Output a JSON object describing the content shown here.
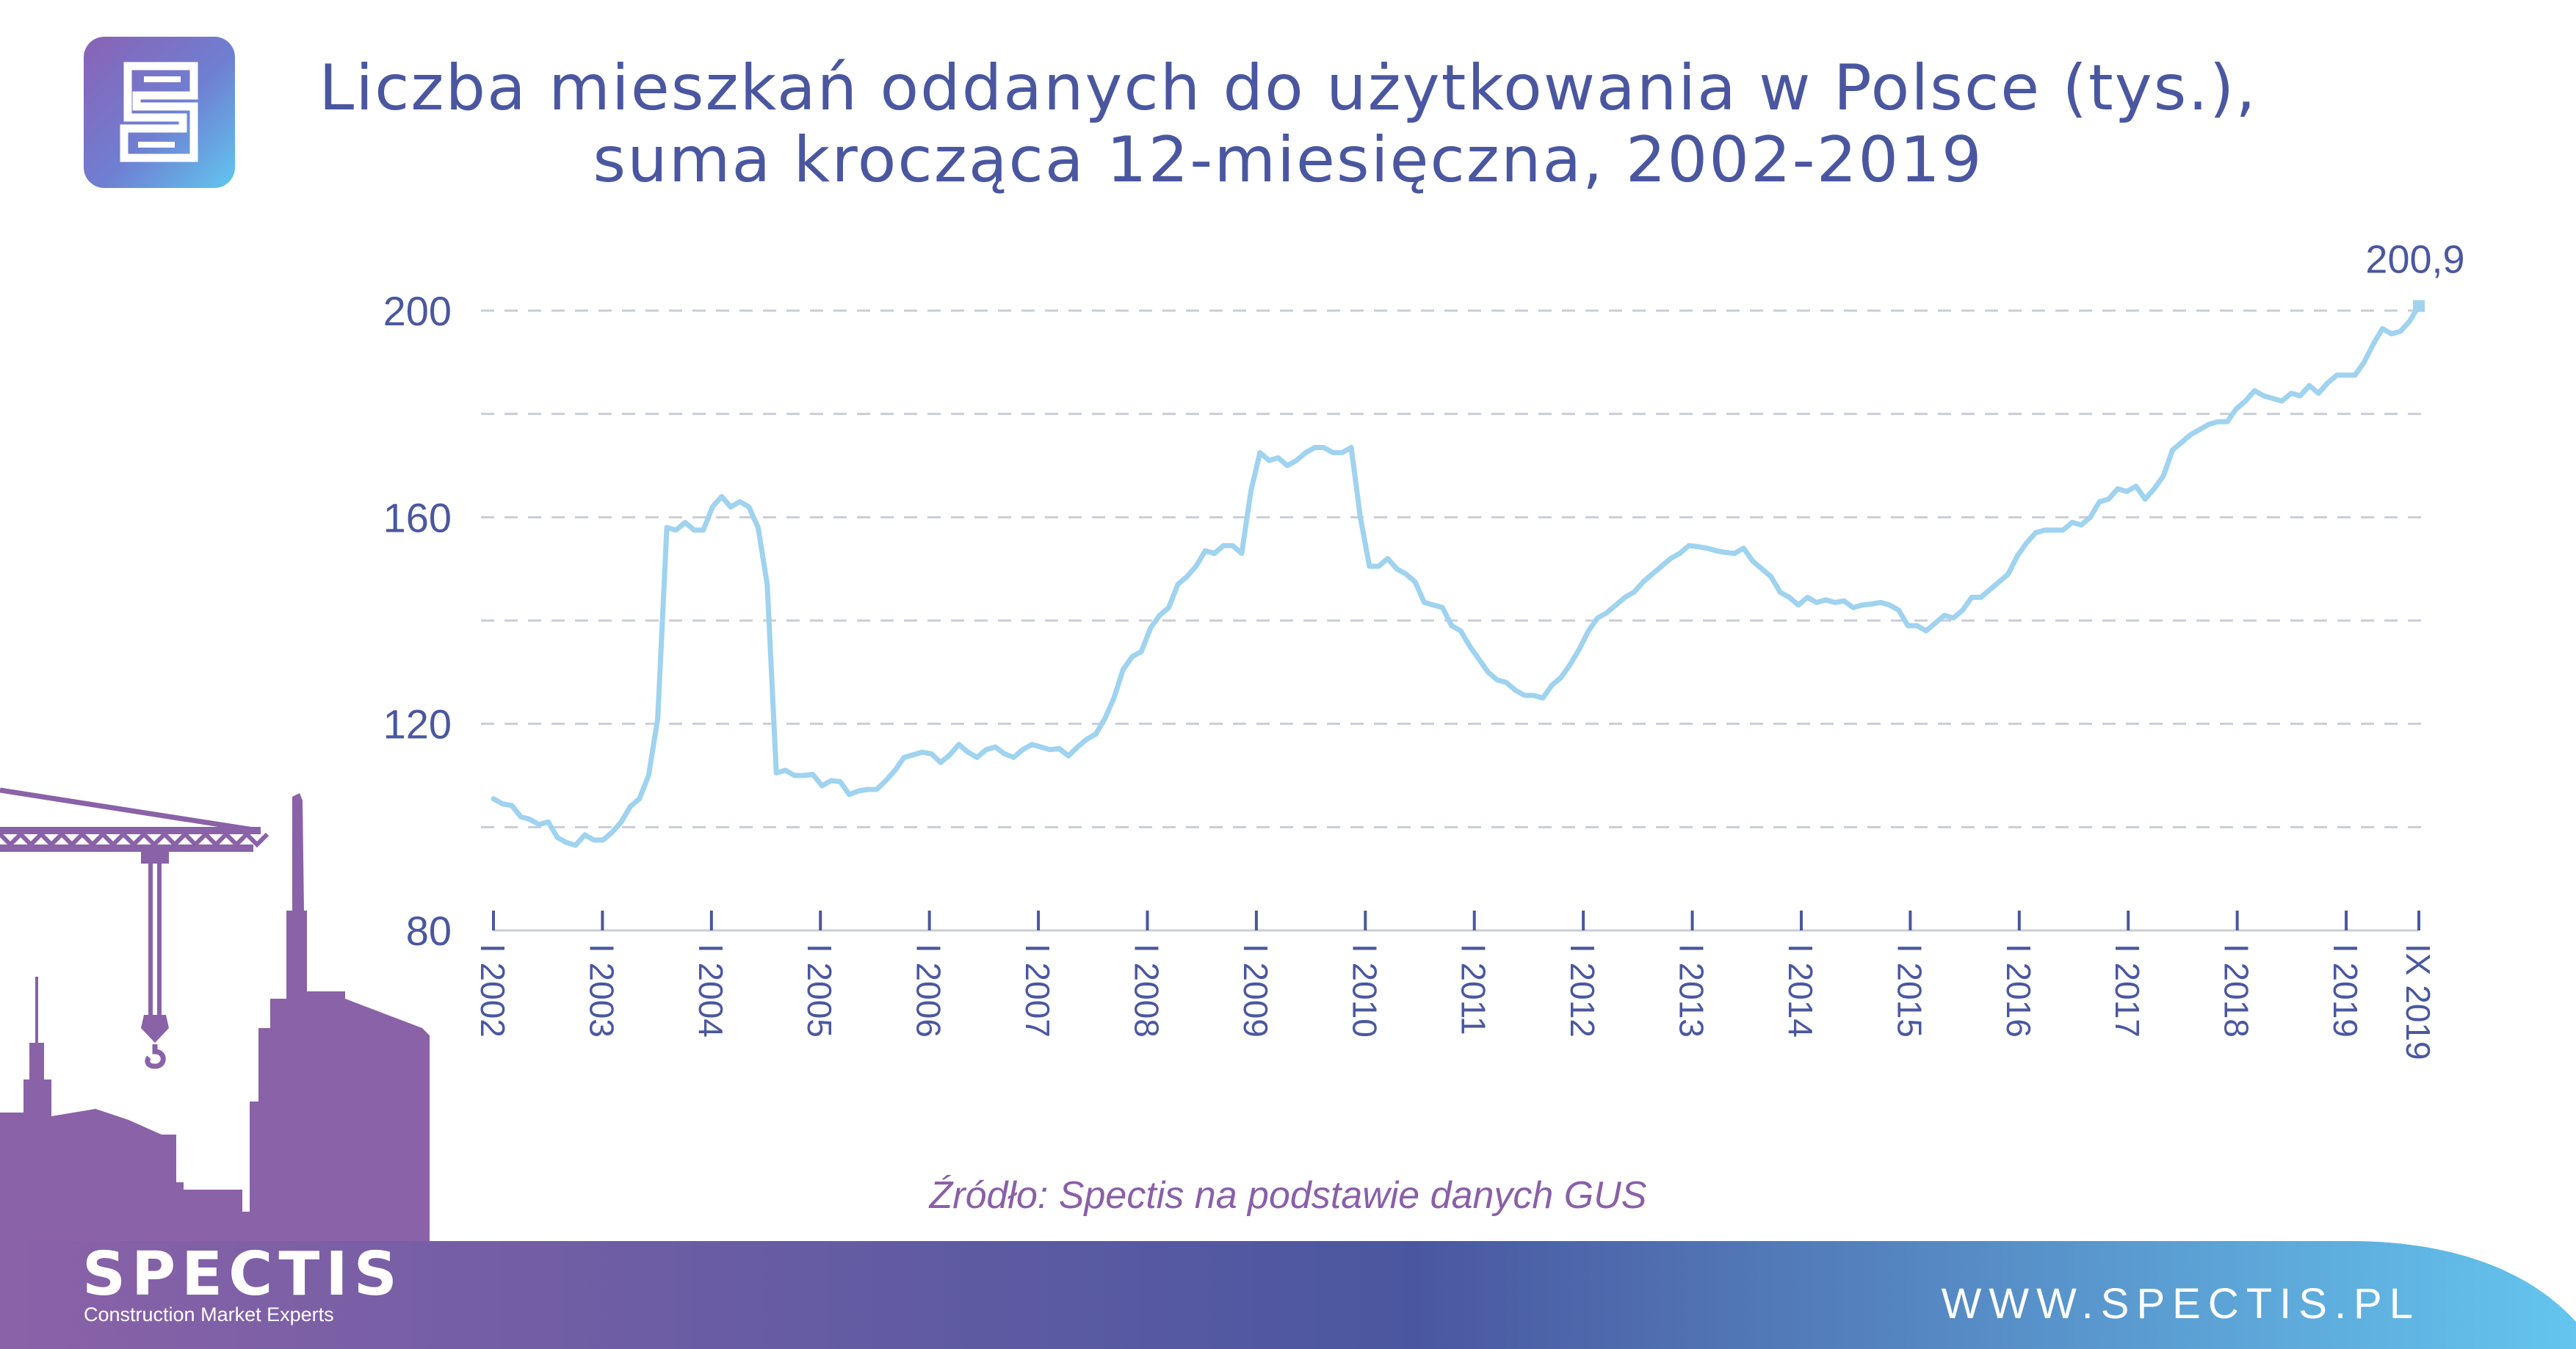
{
  "title": {
    "line1": "Liczba mieszkań oddanych do użytkowania w Polsce (tys.),",
    "line2": "suma krocząca 12-miesięczna, 2002-2019"
  },
  "source": "Źródło: Spectis na podstawie danych GUS",
  "brand": {
    "name": "SPECTIS",
    "tagline": "Construction Market Experts",
    "website": "WWW.SPECTIS.PL",
    "logo_letter": "S"
  },
  "colors": {
    "title": "#4a57a0",
    "axis": "#4a57a0",
    "line": "#9fd3ef",
    "grid": "#c9cdd8",
    "source": "#8a5fa8",
    "silhouette": "#8a62a8",
    "banner_left": "#8a62a8",
    "banner_mid": "#4a57a0",
    "banner_right": "#64c5ee"
  },
  "chart_data": {
    "type": "line",
    "title": "Liczba mieszkań oddanych do użytkowania w Polsce (tys.), suma krocząca 12-miesięczna, 2002-2019",
    "xlabel": "",
    "ylabel": "",
    "ylim": [
      80,
      200
    ],
    "yticks": [
      80,
      120,
      160,
      200
    ],
    "ytick_labels": [
      "80",
      "120",
      "160",
      "200"
    ],
    "grid": "horizontal dashed",
    "x_start": "I 2002",
    "x_end": "IX 2019",
    "xtick_labels": [
      "I 2002",
      "I 2003",
      "I 2004",
      "I 2005",
      "I 2006",
      "I 2007",
      "I 2008",
      "I 2009",
      "I 2010",
      "I 2011",
      "I 2012",
      "I 2013",
      "I 2014",
      "I 2015",
      "I 2016",
      "I 2017",
      "I 2018",
      "I 2019",
      "IX 2019"
    ],
    "xtick_months": [
      0,
      12,
      24,
      36,
      48,
      60,
      72,
      84,
      96,
      108,
      120,
      132,
      144,
      156,
      168,
      180,
      192,
      204,
      212
    ],
    "end_label": "200,9",
    "series": [
      {
        "values": [
          105.5,
          104.5,
          104.2,
          102,
          101.5,
          100.5,
          101,
          98,
          97,
          96.5,
          98.5,
          97.5,
          97.5,
          99,
          101,
          104,
          105.5,
          110,
          121,
          158,
          157.5,
          159,
          157.5,
          157.5,
          162,
          164,
          162,
          163,
          162,
          158,
          147,
          110.5,
          111,
          110,
          110,
          110.2,
          108,
          109,
          108.8,
          106.3,
          107,
          107.3,
          107.3,
          109,
          111,
          113.5,
          114,
          114.5,
          114.2,
          112.5,
          114,
          116,
          114.5,
          113.5,
          115,
          115.5,
          114.2,
          113.5,
          115,
          116,
          115.5,
          115,
          115.2,
          113.8,
          115.5,
          117,
          118,
          121,
          125,
          130.5,
          133,
          134,
          138.5,
          141,
          142.5,
          147,
          148.5,
          150.5,
          153.5,
          153,
          154.5,
          154.5,
          153,
          165,
          172.5,
          171,
          171.5,
          170,
          171,
          172.5,
          173.5,
          173.5,
          172.5,
          172.5,
          173.5,
          160,
          150.5,
          150.5,
          152,
          150,
          149,
          147.5,
          143.5,
          143,
          142.5,
          139,
          138,
          135,
          132.5,
          130,
          128.5,
          128,
          126.5,
          125.5,
          125.5,
          125,
          127.5,
          129,
          131.5,
          134.5,
          138,
          140.5,
          141.5,
          143,
          144.5,
          145.5,
          147.5,
          149,
          150.5,
          152,
          153,
          154.5,
          154.3,
          154,
          153.5,
          153.2,
          153,
          154,
          151.5,
          150,
          148.5,
          145.5,
          144.5,
          143,
          144.5,
          143.5,
          144,
          143.5,
          143.8,
          142.5,
          143,
          143.2,
          143.5,
          143,
          142,
          139,
          139,
          138,
          139.5,
          141,
          140.5,
          142,
          144.5,
          144.5,
          146,
          147.5,
          149,
          152.5,
          155,
          157,
          157.5,
          157.5,
          157.5,
          159,
          158.5,
          160,
          163,
          163.5,
          165.5,
          165,
          166,
          163.5,
          165.5,
          168,
          173,
          174.5,
          176,
          177,
          178,
          178.5,
          178.5,
          181,
          182.5,
          184.5,
          183.5,
          183,
          182.5,
          184,
          183.5,
          185.5,
          184,
          186,
          187.5,
          187.5,
          187.5,
          190,
          193.5,
          196.5,
          195.5,
          196,
          198,
          200.9
        ]
      }
    ]
  }
}
